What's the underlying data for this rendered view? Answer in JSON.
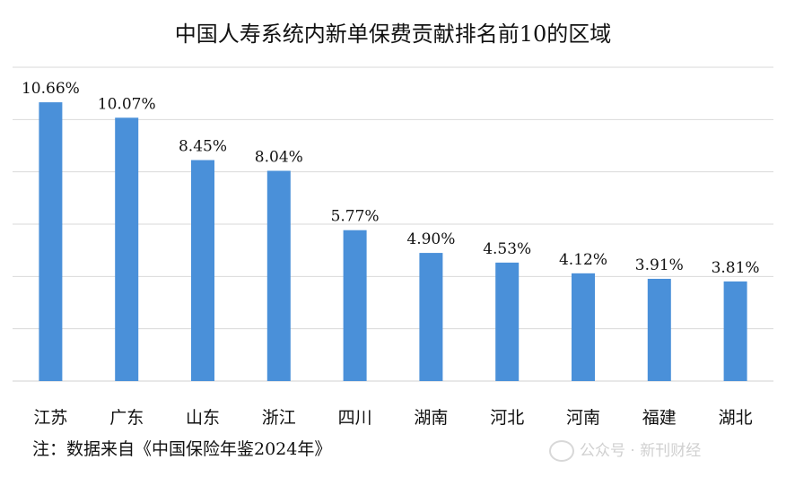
{
  "chart_data": {
    "type": "bar",
    "title": "中国人寿系统内新单保费贡献排名前10的区域",
    "categories": [
      "江苏",
      "广东",
      "山东",
      "浙江",
      "四川",
      "湖南",
      "河北",
      "河南",
      "福建",
      "湖北"
    ],
    "values": [
      10.66,
      10.07,
      8.45,
      8.04,
      5.77,
      4.9,
      4.53,
      4.12,
      3.91,
      3.81
    ],
    "value_labels": [
      "10.66%",
      "10.07%",
      "8.45%",
      "8.04%",
      "5.77%",
      "4.90%",
      "4.53%",
      "4.12%",
      "3.91%",
      "3.81%"
    ],
    "ylim": [
      0,
      12
    ],
    "grid": true,
    "bar_color": "#4A90D9",
    "gridline_color": "#d9d9d9"
  },
  "footnote": "注：数据来自《中国保险年鉴2024年》",
  "watermark": "公众号 · 新刊财经"
}
